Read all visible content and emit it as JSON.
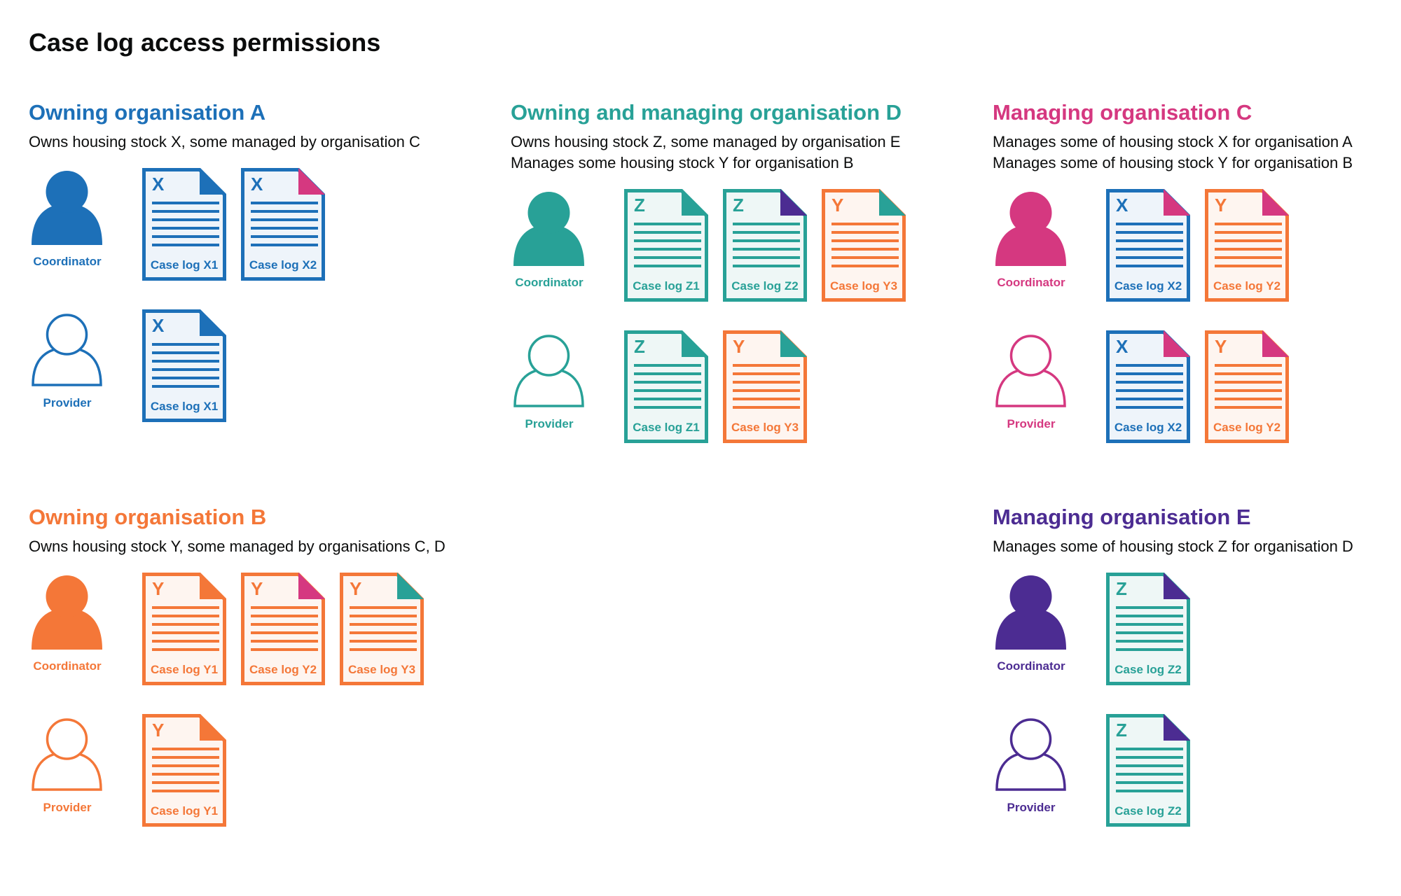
{
  "title": "Case log access permissions",
  "colors": {
    "X": "#1d70b8",
    "Y": "#f47738",
    "Z": "#28a197",
    "C": "#d53880",
    "E": "#4c2c92"
  },
  "tints": {
    "X": "#eef4fa",
    "Y": "#fef5f0",
    "Z": "#eef7f6"
  },
  "sections": [
    {
      "title": "Owning organisation A",
      "color": "#1d70b8",
      "description": [
        "Owns housing stock X, some managed by organisation C"
      ],
      "rows": [
        {
          "role": "Coordinator",
          "filled": true,
          "docs": [
            {
              "letter": "X",
              "label": "Case log X1",
              "corner": "#1d70b8"
            },
            {
              "letter": "X",
              "label": "Case log X2",
              "corner": "#d53880"
            }
          ]
        },
        {
          "role": "Provider",
          "filled": false,
          "docs": [
            {
              "letter": "X",
              "label": "Case log X1",
              "corner": "#1d70b8"
            }
          ]
        }
      ]
    },
    {
      "title": "Owning and managing organisation D",
      "color": "#28a197",
      "description": [
        "Owns housing stock Z, some managed by organisation E",
        "Manages some housing stock Y for organisation B"
      ],
      "rows": [
        {
          "role": "Coordinator",
          "filled": true,
          "docs": [
            {
              "letter": "Z",
              "label": "Case log Z1",
              "corner": "#28a197"
            },
            {
              "letter": "Z",
              "label": "Case log Z2",
              "corner": "#4c2c92"
            },
            {
              "letter": "Y",
              "label": "Case log Y3",
              "corner": "#28a197"
            }
          ]
        },
        {
          "role": "Provider",
          "filled": false,
          "docs": [
            {
              "letter": "Z",
              "label": "Case log Z1",
              "corner": "#28a197"
            },
            {
              "letter": "Y",
              "label": "Case log Y3",
              "corner": "#28a197"
            }
          ]
        }
      ]
    },
    {
      "title": "Managing organisation C",
      "color": "#d53880",
      "description": [
        "Manages some of housing stock X for organisation A",
        "Manages some of housing stock Y for organisation B"
      ],
      "rows": [
        {
          "role": "Coordinator",
          "filled": true,
          "docs": [
            {
              "letter": "X",
              "label": "Case log X2",
              "corner": "#d53880"
            },
            {
              "letter": "Y",
              "label": "Case log Y2",
              "corner": "#d53880"
            }
          ]
        },
        {
          "role": "Provider",
          "filled": false,
          "docs": [
            {
              "letter": "X",
              "label": "Case log X2",
              "corner": "#d53880"
            },
            {
              "letter": "Y",
              "label": "Case log Y2",
              "corner": "#d53880"
            }
          ]
        }
      ]
    },
    {
      "title": "Owning organisation B",
      "color": "#f47738",
      "description": [
        "Owns housing stock Y, some managed by organisations C, D"
      ],
      "rows": [
        {
          "role": "Coordinator",
          "filled": true,
          "docs": [
            {
              "letter": "Y",
              "label": "Case log Y1",
              "corner": "#f47738"
            },
            {
              "letter": "Y",
              "label": "Case log Y2",
              "corner": "#d53880"
            },
            {
              "letter": "Y",
              "label": "Case log Y3",
              "corner": "#28a197"
            }
          ]
        },
        {
          "role": "Provider",
          "filled": false,
          "docs": [
            {
              "letter": "Y",
              "label": "Case log Y1",
              "corner": "#f47738"
            }
          ]
        }
      ]
    },
    {
      "title": "Managing organisation E",
      "color": "#4c2c92",
      "description": [
        "Manages some of housing stock Z for organisation D"
      ],
      "rows": [
        {
          "role": "Coordinator",
          "filled": true,
          "docs": [
            {
              "letter": "Z",
              "label": "Case log Z2",
              "corner": "#4c2c92"
            }
          ]
        },
        {
          "role": "Provider",
          "filled": false,
          "docs": [
            {
              "letter": "Z",
              "label": "Case log Z2",
              "corner": "#4c2c92"
            }
          ]
        }
      ]
    }
  ]
}
